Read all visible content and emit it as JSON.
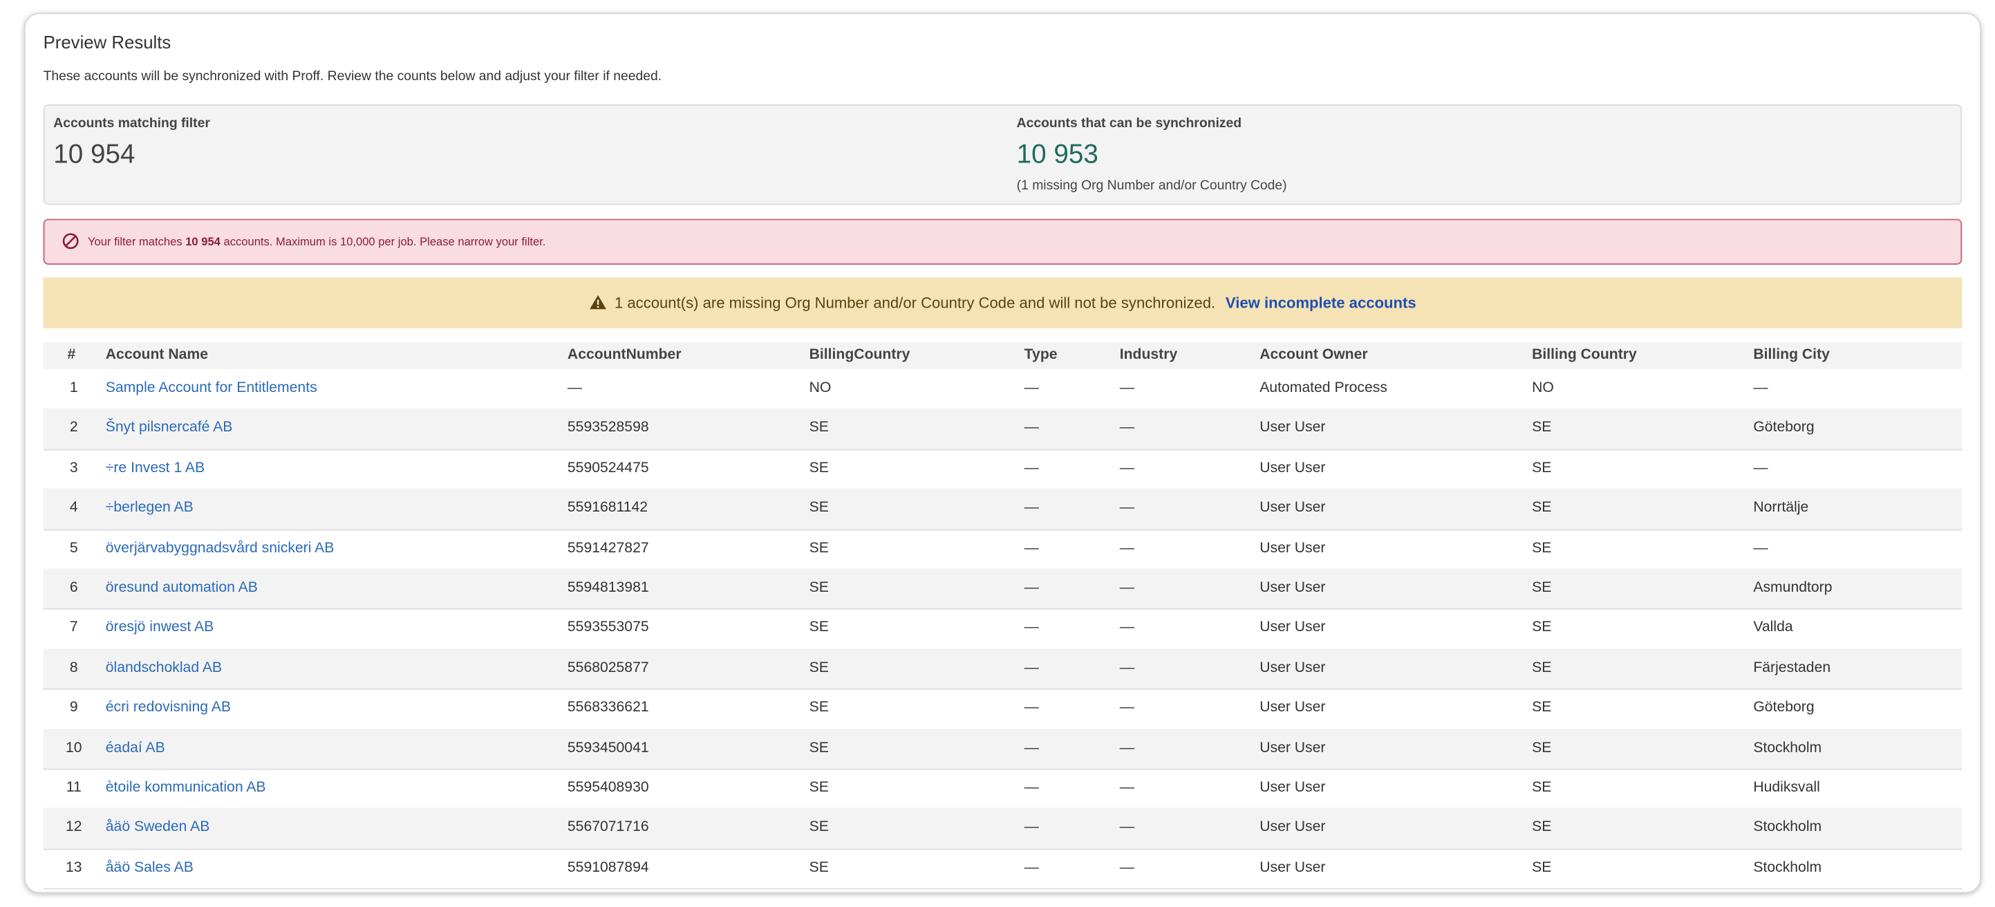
{
  "header": {
    "title": "Preview Results",
    "description": "These accounts will be synchronized with Proff. Review the counts below and adjust your filter if needed."
  },
  "stats": [
    {
      "label": "Accounts matching filter",
      "value": "10 954"
    },
    {
      "label": "Accounts that can be synchronized",
      "value": "10 953",
      "note": "(1 missing Org Number and/or Country Code)"
    }
  ],
  "error": {
    "prefix": "Your filter matches",
    "count": "10 954",
    "suffix": "accounts. Maximum is 10,000 per job. Please narrow your filter."
  },
  "warning": {
    "text": "1 account(s) are missing Org Number and/or Country Code and will not be synchronized.",
    "link": "View incomplete accounts"
  },
  "table": {
    "columns": [
      "#",
      "Account Name",
      "AccountNumber",
      "BillingCountry",
      "Type",
      "Industry",
      "Account Owner",
      "Billing Country",
      "Billing City"
    ],
    "rows": [
      [
        "1",
        "Sample Account for Entitlements",
        "—",
        "NO",
        "—",
        "—",
        "Automated Process",
        "NO",
        "—"
      ],
      [
        "2",
        "Šnyt pilsnercafé AB",
        "5593528598",
        "SE",
        "—",
        "—",
        "User User",
        "SE",
        "Göteborg"
      ],
      [
        "3",
        "÷re Invest 1 AB",
        "5590524475",
        "SE",
        "—",
        "—",
        "User User",
        "SE",
        "—"
      ],
      [
        "4",
        "÷berlegen AB",
        "5591681142",
        "SE",
        "—",
        "—",
        "User User",
        "SE",
        "Norrtälje"
      ],
      [
        "5",
        "överjärvabyggnadsvård snickeri AB",
        "5591427827",
        "SE",
        "—",
        "—",
        "User User",
        "SE",
        "—"
      ],
      [
        "6",
        "öresund automation AB",
        "5594813981",
        "SE",
        "—",
        "—",
        "User User",
        "SE",
        "Asmundtorp"
      ],
      [
        "7",
        "öresjö inwest AB",
        "5593553075",
        "SE",
        "—",
        "—",
        "User User",
        "SE",
        "Vallda"
      ],
      [
        "8",
        "ölandschoklad AB",
        "5568025877",
        "SE",
        "—",
        "—",
        "User User",
        "SE",
        "Färjestaden"
      ],
      [
        "9",
        "écri redovisning AB",
        "5568336621",
        "SE",
        "—",
        "—",
        "User User",
        "SE",
        "Göteborg"
      ],
      [
        "10",
        "éadaí AB",
        "5593450041",
        "SE",
        "—",
        "—",
        "User User",
        "SE",
        "Stockholm"
      ],
      [
        "11",
        "ètoile kommunication AB",
        "5595408930",
        "SE",
        "—",
        "—",
        "User User",
        "SE",
        "Hudiksvall"
      ],
      [
        "12",
        "åäö Sweden AB",
        "5567071716",
        "SE",
        "—",
        "—",
        "User User",
        "SE",
        "Stockholm"
      ],
      [
        "13",
        "åäö Sales AB",
        "5591087894",
        "SE",
        "—",
        "—",
        "User User",
        "SE",
        "Stockholm"
      ]
    ]
  }
}
